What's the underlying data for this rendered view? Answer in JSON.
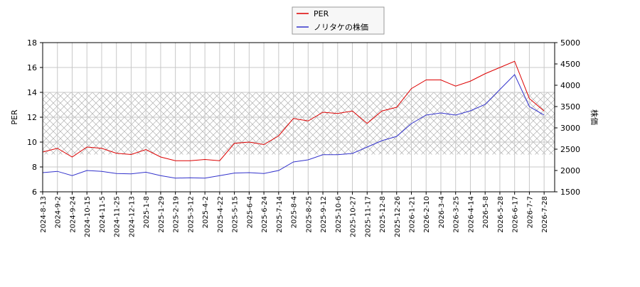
{
  "chart_data": {
    "type": "line",
    "x": [
      "2024-8-13",
      "2024-9-2",
      "2024-9-24",
      "2024-10-15",
      "2024-11-5",
      "2024-11-25",
      "2024-12-13",
      "2025-1-8",
      "2025-1-29",
      "2025-2-19",
      "2025-3-12",
      "2025-4-2",
      "2025-4-22",
      "2025-5-15",
      "2025-6-4",
      "2025-6-24",
      "2025-7-14",
      "2025-8-4",
      "2025-8-25",
      "2025-9-12",
      "2025-10-6",
      "2025-10-27",
      "2025-11-17",
      "2025-12-8",
      "2025-12-26",
      "2026-1-21",
      "2026-2-10",
      "2026-3-4",
      "2026-3-25",
      "2026-4-14",
      "2026-5-8",
      "2026-5-28",
      "2026-6-17",
      "2026-7-7",
      "2026-7-28"
    ],
    "series": [
      {
        "name": "PER",
        "color": "#dd0000",
        "values": [
          9.2,
          9.5,
          8.8,
          9.6,
          9.5,
          9.1,
          9.0,
          9.4,
          8.8,
          8.5,
          8.5,
          8.6,
          8.5,
          9.9,
          10.0,
          9.8,
          10.5,
          11.9,
          11.7,
          12.4,
          12.3,
          12.5,
          11.5,
          12.5,
          12.8,
          14.3,
          15.0,
          15.0,
          14.5,
          14.9,
          15.5,
          16.0,
          16.5,
          13.5,
          12.5
        ]
      },
      {
        "name": "ノリタケの株価",
        "color": "#3333cc",
        "axis": "y2",
        "values": [
          1950,
          1980,
          1880,
          2000,
          1980,
          1930,
          1920,
          1960,
          1880,
          1820,
          1830,
          1820,
          1880,
          1940,
          1950,
          1930,
          2000,
          2200,
          2250,
          2370,
          2370,
          2400,
          2550,
          2700,
          2800,
          3100,
          3300,
          3350,
          3300,
          3400,
          3550,
          3900,
          4250,
          3500,
          3300
        ]
      }
    ],
    "ylabel": "PER",
    "y2label": "株価",
    "ylim": [
      6,
      18
    ],
    "yticks": [
      6,
      8,
      10,
      12,
      14,
      16,
      18
    ],
    "y2lim": [
      1500,
      5000
    ],
    "y2ticks": [
      1500,
      2000,
      2500,
      3000,
      3500,
      4000,
      4500,
      5000
    ],
    "band": [
      9,
      14
    ],
    "grid": true
  }
}
